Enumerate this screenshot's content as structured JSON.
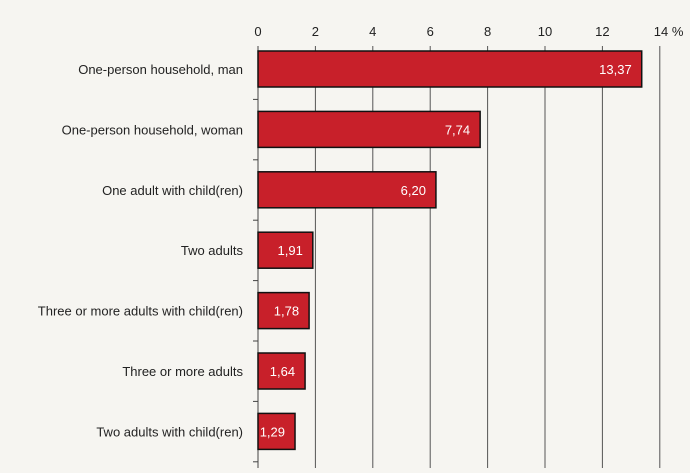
{
  "chart_data": {
    "type": "bar",
    "orientation": "horizontal",
    "categories": [
      "One-person household, man",
      "One-person household, woman",
      "One adult with child(ren)",
      "Two adults",
      "Three or more adults with child(ren)",
      "Three or more adults",
      "Two adults with child(ren)"
    ],
    "values": [
      13.37,
      7.74,
      6.2,
      1.91,
      1.78,
      1.64,
      1.29
    ],
    "value_labels": [
      "13,37",
      "7,74",
      "6,20",
      "1,91",
      "1,78",
      "1,64",
      "1,29"
    ],
    "xlim": [
      0,
      14
    ],
    "x_ticks": [
      0,
      2,
      4,
      6,
      8,
      10,
      12,
      14
    ],
    "x_tick_labels": [
      "0",
      "2",
      "4",
      "6",
      "8",
      "10",
      "12",
      "14 %"
    ],
    "title": "",
    "xlabel": "",
    "ylabel": "",
    "grid": true,
    "axis_position": "top",
    "colors": {
      "bar": "#c8202a",
      "bar_outline": "#111111",
      "background": "#f6f5f1",
      "value_text": "#ffffff"
    }
  }
}
